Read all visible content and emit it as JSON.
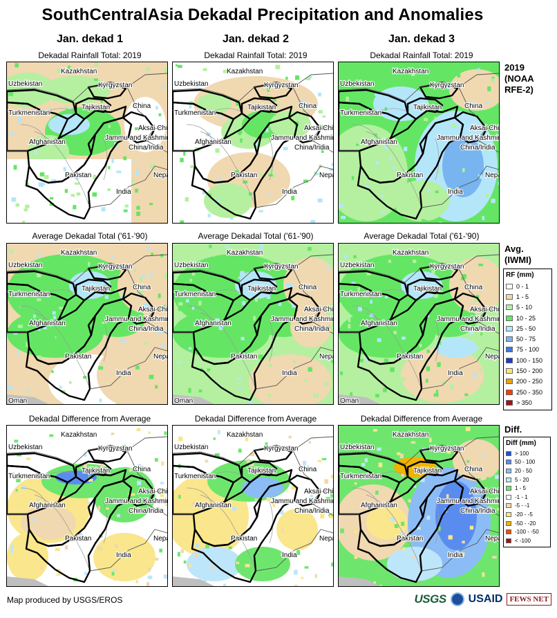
{
  "title": "SouthCentralAsia Dekadal Precipitation and Anomalies",
  "columns": [
    "Jan. dekad 1",
    "Jan. dekad 2",
    "Jan. dekad 3"
  ],
  "rows": [
    {
      "subtitle": "Dekadal Rainfall Total: 2019",
      "side_label": [
        "2019",
        "(NOAA",
        "RFE-2)"
      ],
      "type": "rfe"
    },
    {
      "subtitle": "Average Dekadal Total ('61-'90)",
      "side_label": [
        "Avg.",
        "(IWMI)"
      ],
      "type": "avg"
    },
    {
      "subtitle": "Dekadal Difference from Average",
      "side_label": [
        "Diff."
      ],
      "type": "diff"
    }
  ],
  "place_labels": {
    "kazakhstan": "Kazakhstan",
    "uzbekistan": "Uzbekistan",
    "kyrgyzstan": "Kyrgyzstan",
    "turkmenistan": "Turkmenistan",
    "tajikistan": "Tajikistan",
    "china": "China",
    "aksai_chin": "Aksai Chin",
    "jammu_kashmir": "Jammu and Kashmir",
    "china_india": "China/India",
    "afghanistan": "Afghanistan",
    "pakistan": "Pakistan",
    "nepal": "Nepal",
    "india": "India",
    "oman": "Oman"
  },
  "rf_legend": {
    "title": "RF (mm)",
    "items": [
      {
        "label": "0 - 1",
        "color": "#ffffff"
      },
      {
        "label": "1 - 5",
        "color": "#f0d8b0"
      },
      {
        "label": "5 - 10",
        "color": "#b4f0a0"
      },
      {
        "label": "10 - 25",
        "color": "#64e664"
      },
      {
        "label": "25 - 50",
        "color": "#b4e6fa"
      },
      {
        "label": "50 - 75",
        "color": "#78b4f0"
      },
      {
        "label": "75 - 100",
        "color": "#3c78e6"
      },
      {
        "label": "100 - 150",
        "color": "#1e3cc8"
      },
      {
        "label": "150 - 200",
        "color": "#fae678"
      },
      {
        "label": "200 - 250",
        "color": "#f0a000"
      },
      {
        "label": "250 - 350",
        "color": "#fa3c00"
      },
      {
        "label": "> 350",
        "color": "#a01414"
      }
    ]
  },
  "diff_legend": {
    "title": "Diff (mm)",
    "items": [
      {
        "label": "> 100",
        "color": "#1e50dc"
      },
      {
        "label": "50 - 100",
        "color": "#5a8cf0"
      },
      {
        "label": "20 - 50",
        "color": "#8cbcf5"
      },
      {
        "label": "5 - 20",
        "color": "#bee6fa"
      },
      {
        "label": "1 - 5",
        "color": "#6ee66e"
      },
      {
        "label": "-1 - 1",
        "color": "#ffffff"
      },
      {
        "label": "-5 - -1",
        "color": "#f0d8b0"
      },
      {
        "label": "-20 - -5",
        "color": "#fae68c"
      },
      {
        "label": "-50 - -20",
        "color": "#f0b400"
      },
      {
        "label": "-100 - -50",
        "color": "#f05000"
      },
      {
        "label": "< -100",
        "color": "#a01414"
      }
    ]
  },
  "credit": "Map produced by USGS/EROS",
  "logos": {
    "usgs": "USGS",
    "usaid": "USAID",
    "fews": "FEWS NET"
  }
}
